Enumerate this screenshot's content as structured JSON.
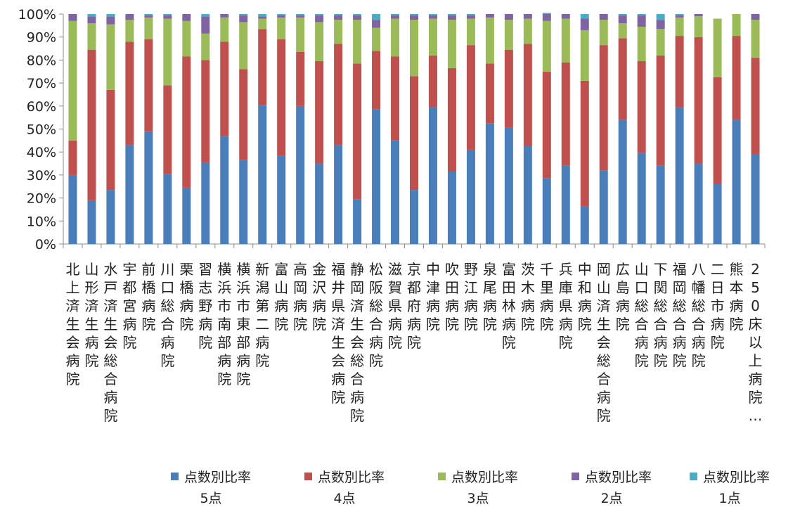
{
  "chart_data": {
    "type": "bar",
    "stacked": true,
    "percent": true,
    "ylim": [
      0,
      100
    ],
    "yticks": [
      "0%",
      "10%",
      "20%",
      "30%",
      "40%",
      "50%",
      "60%",
      "70%",
      "80%",
      "90%",
      "100%"
    ],
    "grid": false,
    "legend_position": "bottom",
    "categories": [
      "北上済生会病院",
      "山形済生病院",
      "水戸済生会総合病院",
      "宇都宮病院",
      "前橋病院",
      "川口総合病院",
      "栗橋病院",
      "習志野病院",
      "横浜市南部病院",
      "横浜市東部病院",
      "新潟第二病院",
      "富山病院",
      "高岡病院",
      "金沢病院",
      "福井県済生会病院",
      "静岡済生会総合病院",
      "松阪総合病院",
      "滋賀県病院",
      "京都府病院",
      "中津病院",
      "吹田病院",
      "野江病院",
      "泉尾病院",
      "富田林病院",
      "茨木病院",
      "千里病院",
      "兵庫県病院",
      "中和病院",
      "岡山済生会総合病院",
      "広島病院",
      "山口総合病院",
      "下関総合病院",
      "福岡総合病院",
      "八幡総合病院",
      "二日市病院",
      "熊本病院",
      "250床以上病院…"
    ],
    "series": [
      {
        "name": "点数別比率 5点",
        "color": "#4a7ebb",
        "values": [
          30,
          19,
          23.5,
          43,
          49,
          30.5,
          24.5,
          35.5,
          47,
          36.5,
          60.5,
          38.5,
          60,
          35,
          43,
          19.5,
          58.5,
          45,
          23.5,
          59.5,
          31.5,
          41,
          52.5,
          50.5,
          42.5,
          28.5,
          34,
          16.5,
          32,
          54,
          39.5,
          34,
          59.5,
          35,
          26,
          54,
          39
        ]
      },
      {
        "name": "点数別比率 4点",
        "color": "#c0504d",
        "values": [
          15,
          65.5,
          43.5,
          45,
          40,
          38.5,
          57,
          44.5,
          41,
          39.5,
          33,
          50.5,
          23.5,
          44.5,
          44,
          59,
          25.5,
          36.5,
          49.5,
          22.5,
          45,
          45.5,
          26,
          34,
          44.5,
          46.5,
          45,
          54.5,
          54.5,
          35.5,
          40,
          48,
          31,
          55,
          46.5,
          36.5,
          42
        ]
      },
      {
        "name": "点数別比率 3点",
        "color": "#9bbb59",
        "values": [
          52,
          11.5,
          28.5,
          9.5,
          9.5,
          29,
          15.5,
          11.5,
          10.5,
          20.5,
          4.5,
          9.5,
          15,
          17,
          10.5,
          19,
          10,
          16.5,
          24.5,
          16,
          21,
          11.5,
          20,
          13,
          11,
          22,
          19,
          22,
          11,
          6.5,
          15,
          11.5,
          8,
          9,
          25.5,
          9.5,
          16.5
        ]
      },
      {
        "name": "点数別比率 2点",
        "color": "#8064a2",
        "values": [
          3,
          3,
          3.5,
          2.5,
          1,
          1.5,
          3,
          7.5,
          1.5,
          3,
          1,
          1,
          1,
          3,
          2,
          2,
          3.5,
          1.5,
          2,
          1.5,
          2,
          1.5,
          1.5,
          2.5,
          2,
          3,
          2,
          5,
          2.5,
          3.5,
          5,
          4,
          1,
          1,
          0,
          0,
          2.5
        ]
      },
      {
        "name": "点数別比率 1点",
        "color": "#4bacc6",
        "values": [
          0,
          1,
          1,
          0,
          0.5,
          0.5,
          0,
          1,
          0,
          0.5,
          1,
          0.5,
          0.5,
          0.5,
          0.5,
          0.5,
          2.5,
          0.5,
          0.5,
          0.5,
          0.5,
          0.5,
          0,
          0,
          0,
          0.5,
          0,
          2,
          0,
          0.5,
          0.5,
          2.5,
          0.5,
          0,
          0,
          0,
          0
        ]
      }
    ]
  },
  "legend": [
    {
      "name": "点数別比率",
      "sub": "5点",
      "color": "#4a7ebb"
    },
    {
      "name": "点数別比率",
      "sub": "4点",
      "color": "#c0504d"
    },
    {
      "name": "点数別比率",
      "sub": "3点",
      "color": "#9bbb59"
    },
    {
      "name": "点数別比率",
      "sub": "2点",
      "color": "#8064a2"
    },
    {
      "name": "点数別比率",
      "sub": "1点",
      "color": "#4bacc6"
    }
  ]
}
